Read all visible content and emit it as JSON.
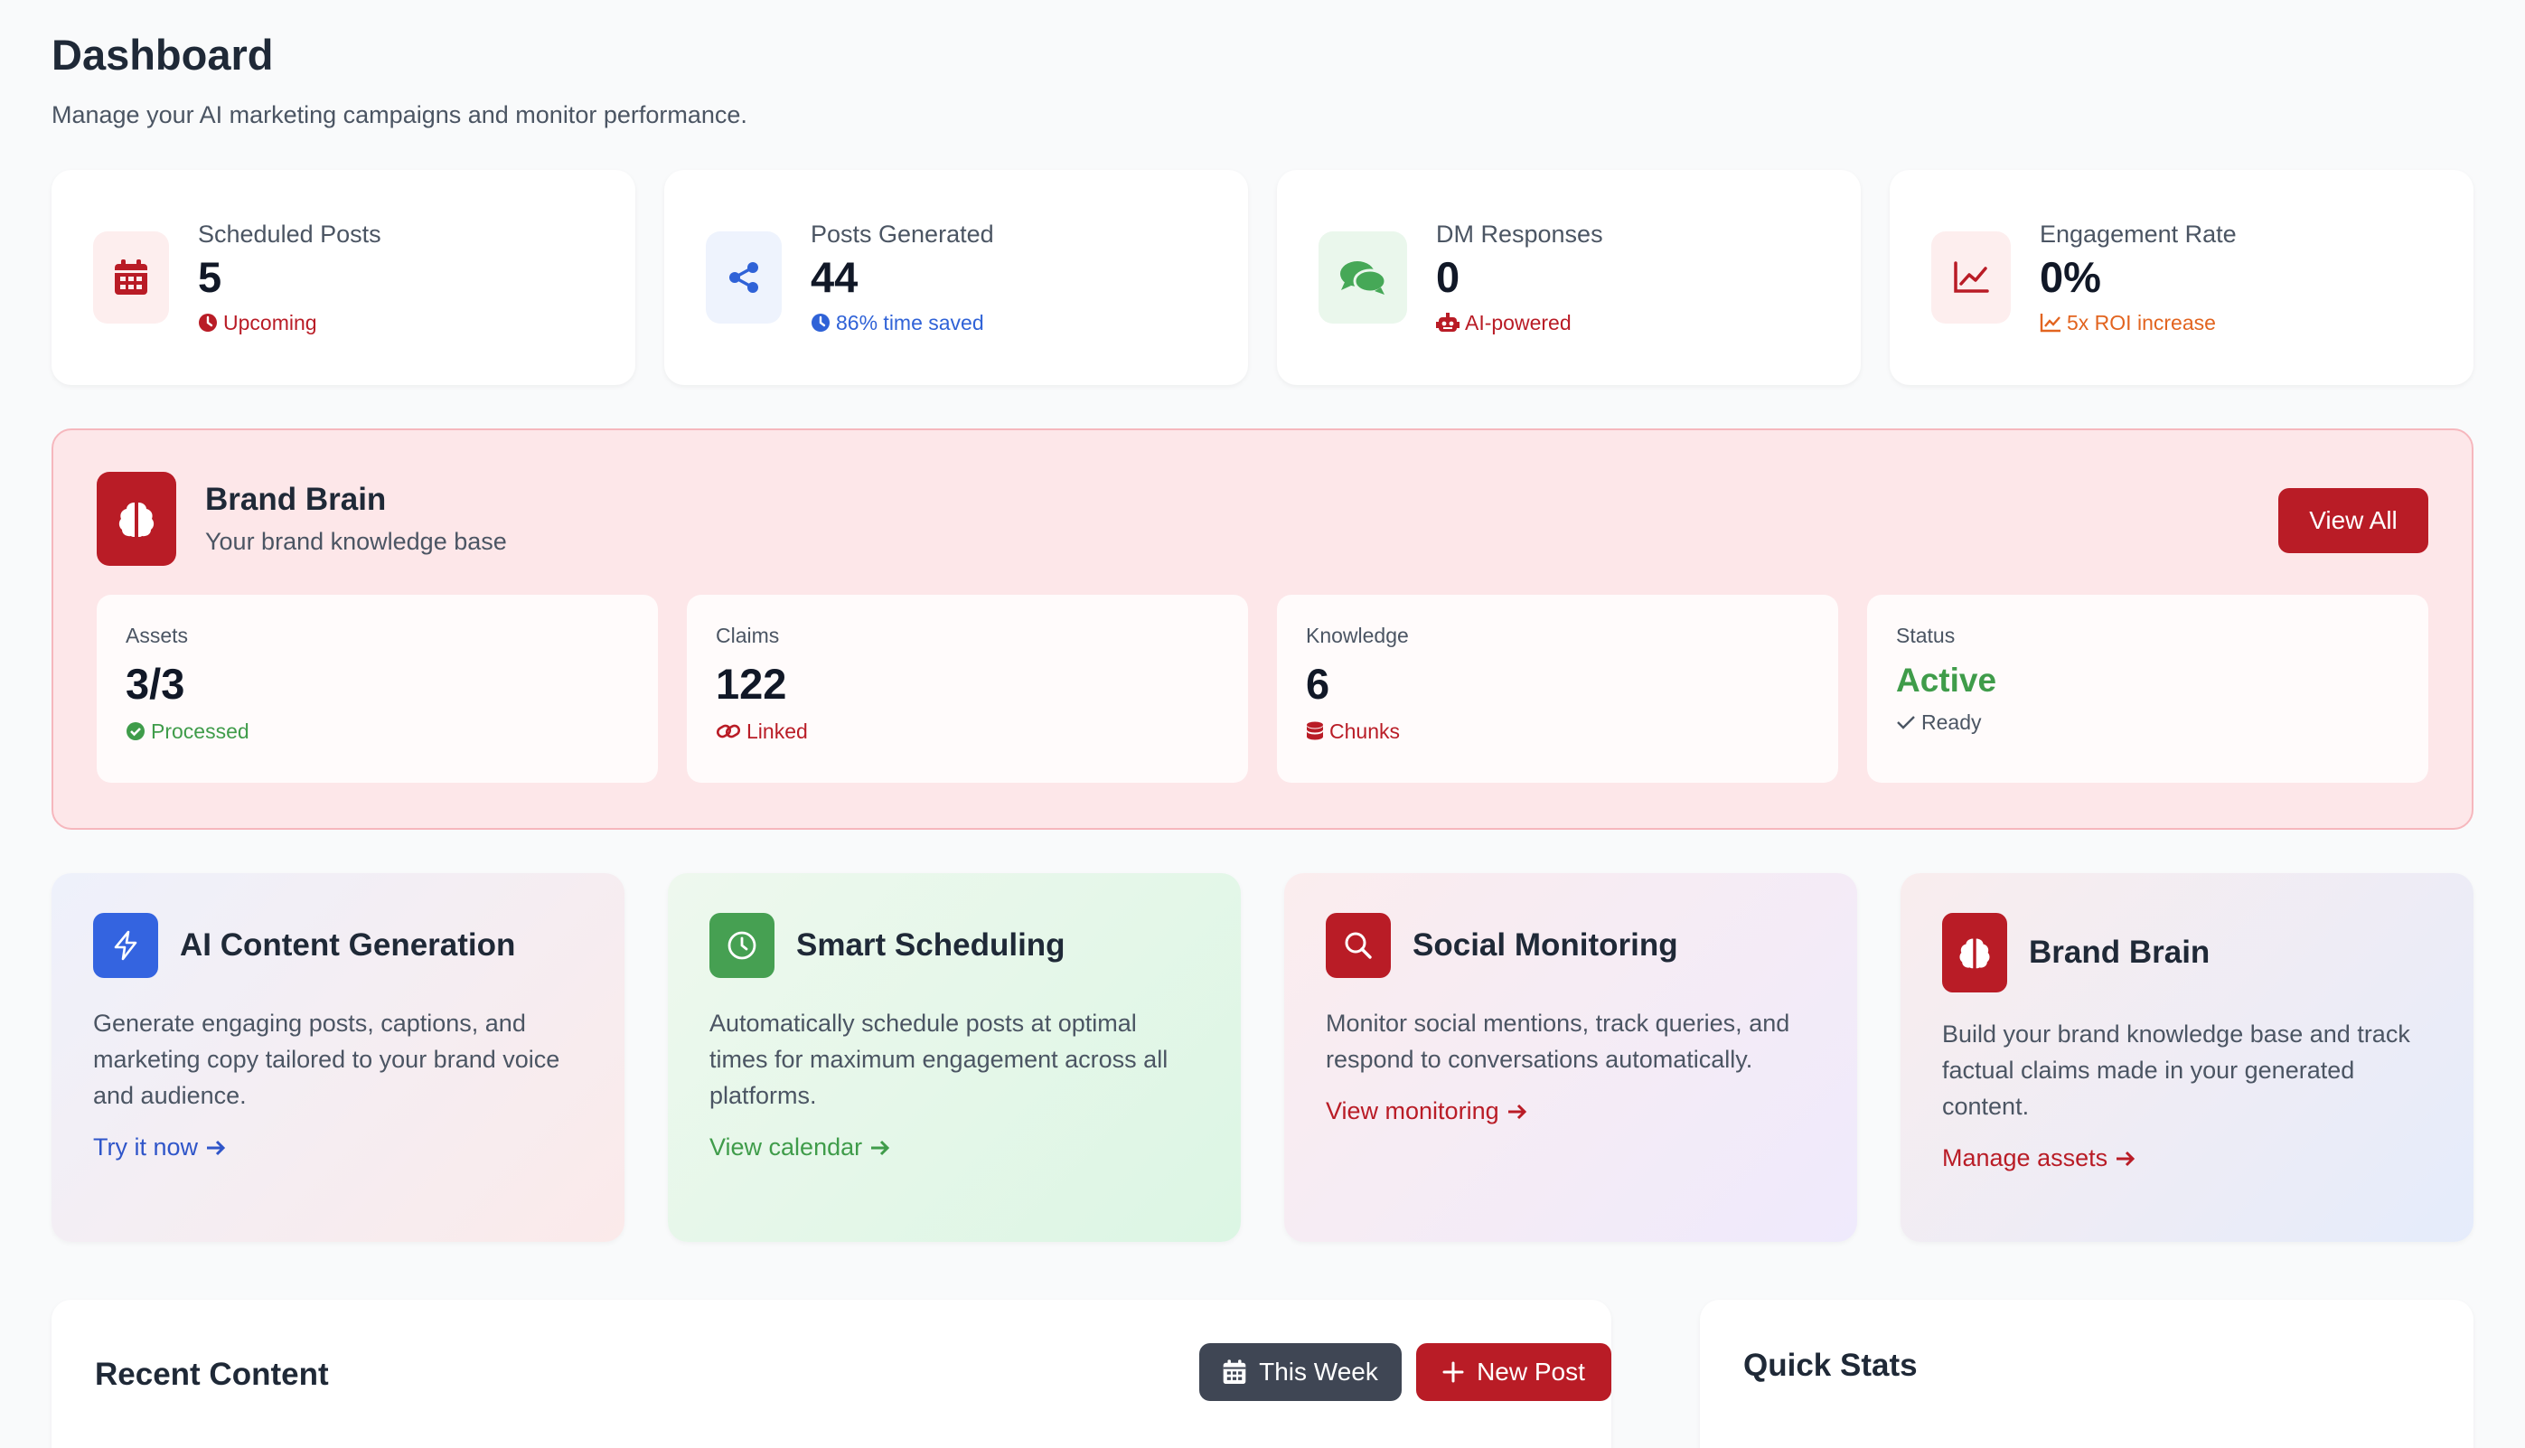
{
  "header": {
    "title": "Dashboard",
    "subtitle": "Manage your AI marketing campaigns and monitor performance."
  },
  "stats": [
    {
      "label": "Scheduled Posts",
      "value": "5",
      "note": "Upcoming",
      "icon": "calendar-icon",
      "note_icon": "clock-icon",
      "color": "#b91c26",
      "bg": "#fdeeee"
    },
    {
      "label": "Posts Generated",
      "value": "44",
      "note": "86% time saved",
      "icon": "share-icon",
      "note_icon": "clock-icon",
      "color": "#2f62d7",
      "bg": "#eef3fd"
    },
    {
      "label": "DM Responses",
      "value": "0",
      "note": "AI-powered",
      "icon": "chat-bubbles-icon",
      "note_icon": "robot-icon",
      "color": "#46a857",
      "bg": "#eaf7ec",
      "note_color": "#b91c26"
    },
    {
      "label": "Engagement Rate",
      "value": "0%",
      "note": "5x ROI increase",
      "icon": "line-chart-icon",
      "note_icon": "chart-icon",
      "color": "#b91c26",
      "bg": "#fdeeee",
      "note_color": "#e2641f"
    }
  ],
  "brand_brain": {
    "title": "Brand Brain",
    "subtitle": "Your brand knowledge base",
    "view_all": "View All",
    "metrics": [
      {
        "label": "Assets",
        "value": "3/3",
        "note": "Processed",
        "note_color": "#3f9c4a",
        "icon": "check-circle-icon"
      },
      {
        "label": "Claims",
        "value": "122",
        "note": "Linked",
        "note_color": "#b91c26",
        "icon": "link-icon"
      },
      {
        "label": "Knowledge",
        "value": "6",
        "note": "Chunks",
        "note_color": "#b91c26",
        "icon": "database-icon"
      },
      {
        "label": "Status",
        "value": "Active",
        "note": "Ready",
        "note_color": "#4b5563",
        "icon": "check-icon"
      }
    ]
  },
  "features": [
    {
      "title": "AI Content Generation",
      "desc": "Generate engaging posts, captions, and marketing copy tailored to your brand voice and audience.",
      "link": "Try it now",
      "icon": "bolt-icon",
      "icon_bg": "#3464e0",
      "link_color": "#2f55c9"
    },
    {
      "title": "Smart Scheduling",
      "desc": "Automatically schedule posts at optimal times for maximum engagement across all platforms.",
      "link": "View calendar",
      "icon": "clock-icon",
      "icon_bg": "#46a052",
      "link_color": "#3f9c4a"
    },
    {
      "title": "Social Monitoring",
      "desc": "Monitor social mentions, track queries, and respond to conversations automatically.",
      "link": "View monitoring",
      "icon": "search-icon",
      "icon_bg": "#b91c26",
      "link_color": "#b91c26"
    },
    {
      "title": "Brand Brain",
      "desc": "Build your brand knowledge base and track factual claims made in your generated content.",
      "link": "Manage assets",
      "icon": "brain-icon",
      "icon_bg": "#b91c26",
      "link_color": "#b91c26"
    }
  ],
  "recent": {
    "title": "Recent Content",
    "this_week": "This Week",
    "new_post": "New Post"
  },
  "quick_stats": {
    "title": "Quick Stats"
  }
}
